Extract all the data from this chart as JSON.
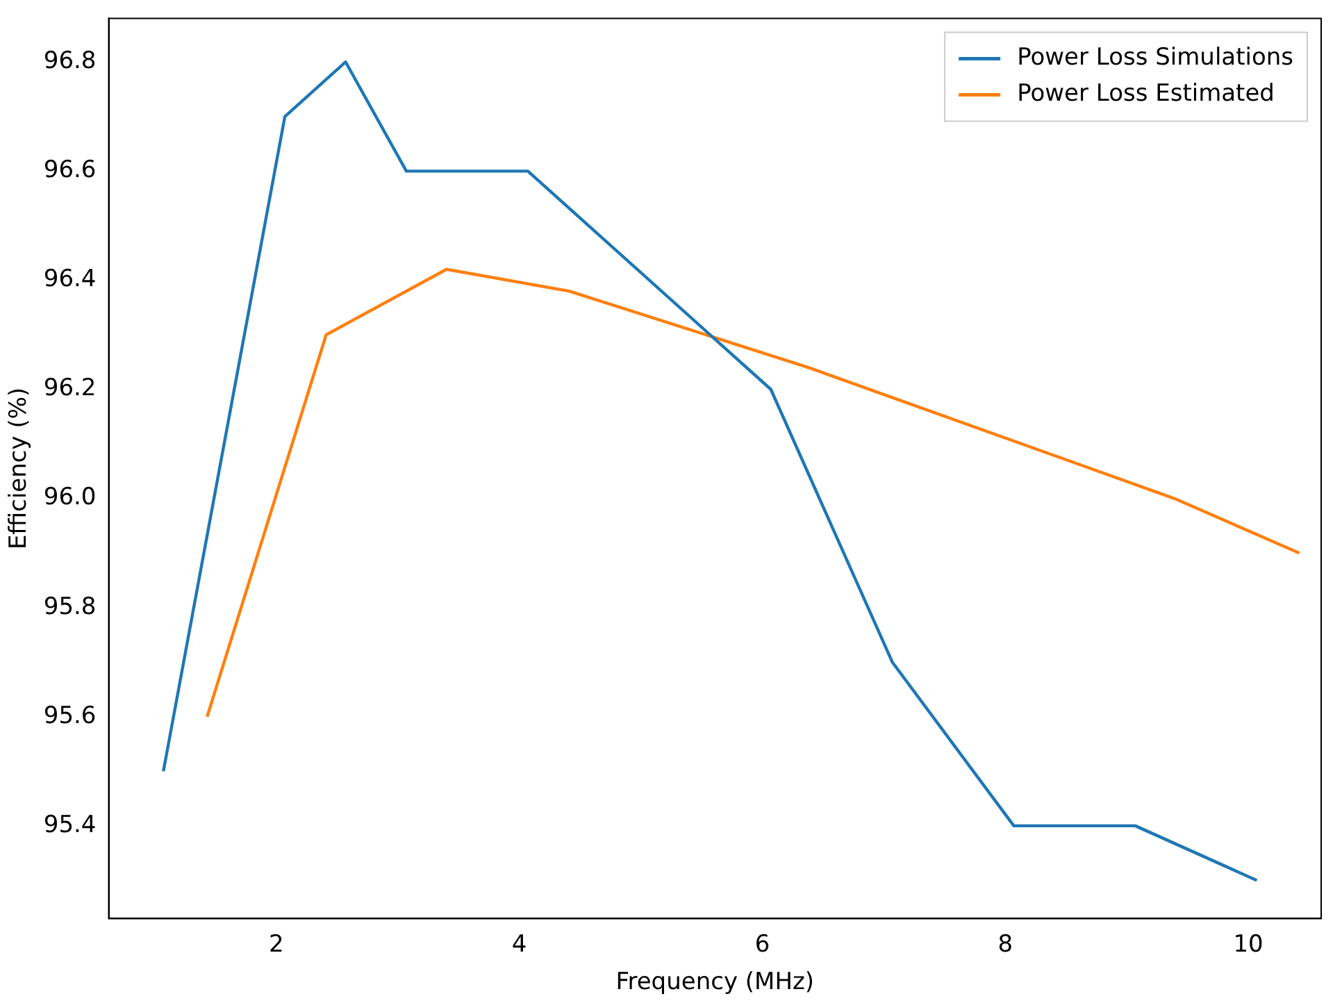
{
  "chart_data": {
    "type": "line",
    "xlabel": "Frequency (MHz)",
    "ylabel": "Efficiency (%)",
    "xlim": [
      0.62,
      10.6
    ],
    "xticks": [
      2,
      4,
      6,
      8,
      10
    ],
    "ylim": [
      95.23,
      96.88
    ],
    "yticks": [
      {
        "value": 95.4,
        "label": "95.4"
      },
      {
        "value": 95.6,
        "label": "95.6"
      },
      {
        "value": 95.8,
        "label": "95.8"
      },
      {
        "value": 96.0,
        "label": "96.0"
      },
      {
        "value": 96.2,
        "label": "96.2"
      },
      {
        "value": 96.4,
        "label": "96.4"
      },
      {
        "value": 96.6,
        "label": "96.6"
      },
      {
        "value": 96.8,
        "label": "96.8"
      }
    ],
    "legend": "top right",
    "grid": false,
    "series": [
      {
        "name": "Power Loss Simulations",
        "color": "#1f77b4",
        "x": [
          1.07,
          2.07,
          2.57,
          3.07,
          4.07,
          6.07,
          7.07,
          8.07,
          9.07,
          10.07
        ],
        "values": [
          95.5,
          96.7,
          96.8,
          96.6,
          96.6,
          96.2,
          95.7,
          95.4,
          95.4,
          95.3
        ]
      },
      {
        "name": "Power Loss Estimated",
        "color": "#ff7f0e",
        "x": [
          1.43,
          2.41,
          3.4,
          4.41,
          6.38,
          9.39,
          10.42
        ],
        "values": [
          95.6,
          96.3,
          96.42,
          96.38,
          96.24,
          96.0,
          95.9
        ]
      }
    ]
  }
}
